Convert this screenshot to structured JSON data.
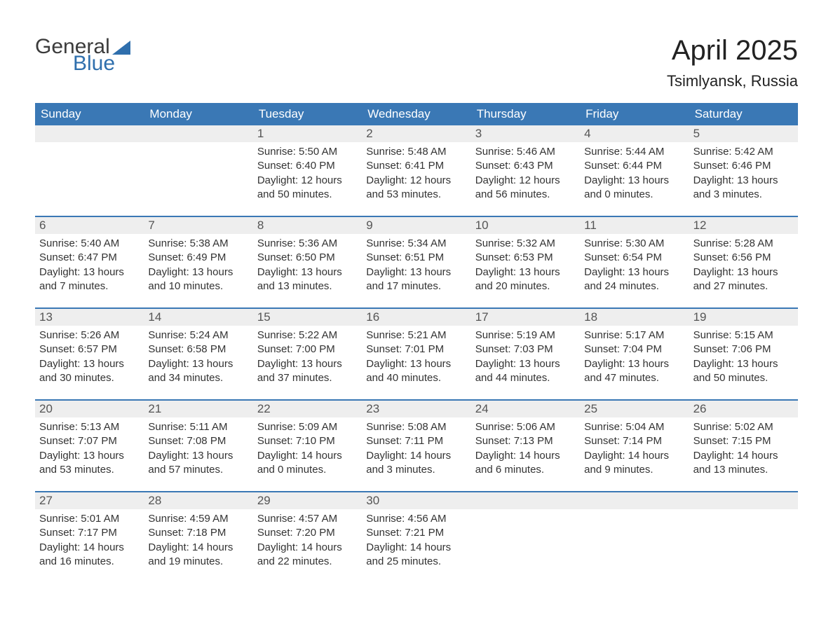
{
  "logo": {
    "part1": "General",
    "part2": "Blue",
    "color1": "#3b3b3b",
    "color2": "#2f6fad",
    "sail_color": "#2f6fad"
  },
  "header": {
    "title": "April 2025",
    "location": "Tsimlyansk, Russia"
  },
  "colors": {
    "header_bg": "#3a78b5",
    "header_text": "#ffffff",
    "daynum_bg": "#eeeeee",
    "week_divider": "#3a78b5",
    "body_text": "#333333",
    "page_bg": "#ffffff"
  },
  "fonts": {
    "body_size": 15,
    "daynum_size": 17,
    "weekday_size": 17,
    "title_size": 40,
    "location_size": 22
  },
  "weekdays": [
    "Sunday",
    "Monday",
    "Tuesday",
    "Wednesday",
    "Thursday",
    "Friday",
    "Saturday"
  ],
  "weeks": [
    [
      null,
      null,
      {
        "n": "1",
        "sunrise": "5:50 AM",
        "sunset": "6:40 PM",
        "day_h": "12",
        "day_m": "50"
      },
      {
        "n": "2",
        "sunrise": "5:48 AM",
        "sunset": "6:41 PM",
        "day_h": "12",
        "day_m": "53"
      },
      {
        "n": "3",
        "sunrise": "5:46 AM",
        "sunset": "6:43 PM",
        "day_h": "12",
        "day_m": "56"
      },
      {
        "n": "4",
        "sunrise": "5:44 AM",
        "sunset": "6:44 PM",
        "day_h": "13",
        "day_m": "0"
      },
      {
        "n": "5",
        "sunrise": "5:42 AM",
        "sunset": "6:46 PM",
        "day_h": "13",
        "day_m": "3"
      }
    ],
    [
      {
        "n": "6",
        "sunrise": "5:40 AM",
        "sunset": "6:47 PM",
        "day_h": "13",
        "day_m": "7"
      },
      {
        "n": "7",
        "sunrise": "5:38 AM",
        "sunset": "6:49 PM",
        "day_h": "13",
        "day_m": "10"
      },
      {
        "n": "8",
        "sunrise": "5:36 AM",
        "sunset": "6:50 PM",
        "day_h": "13",
        "day_m": "13"
      },
      {
        "n": "9",
        "sunrise": "5:34 AM",
        "sunset": "6:51 PM",
        "day_h": "13",
        "day_m": "17"
      },
      {
        "n": "10",
        "sunrise": "5:32 AM",
        "sunset": "6:53 PM",
        "day_h": "13",
        "day_m": "20"
      },
      {
        "n": "11",
        "sunrise": "5:30 AM",
        "sunset": "6:54 PM",
        "day_h": "13",
        "day_m": "24"
      },
      {
        "n": "12",
        "sunrise": "5:28 AM",
        "sunset": "6:56 PM",
        "day_h": "13",
        "day_m": "27"
      }
    ],
    [
      {
        "n": "13",
        "sunrise": "5:26 AM",
        "sunset": "6:57 PM",
        "day_h": "13",
        "day_m": "30"
      },
      {
        "n": "14",
        "sunrise": "5:24 AM",
        "sunset": "6:58 PM",
        "day_h": "13",
        "day_m": "34"
      },
      {
        "n": "15",
        "sunrise": "5:22 AM",
        "sunset": "7:00 PM",
        "day_h": "13",
        "day_m": "37"
      },
      {
        "n": "16",
        "sunrise": "5:21 AM",
        "sunset": "7:01 PM",
        "day_h": "13",
        "day_m": "40"
      },
      {
        "n": "17",
        "sunrise": "5:19 AM",
        "sunset": "7:03 PM",
        "day_h": "13",
        "day_m": "44"
      },
      {
        "n": "18",
        "sunrise": "5:17 AM",
        "sunset": "7:04 PM",
        "day_h": "13",
        "day_m": "47"
      },
      {
        "n": "19",
        "sunrise": "5:15 AM",
        "sunset": "7:06 PM",
        "day_h": "13",
        "day_m": "50"
      }
    ],
    [
      {
        "n": "20",
        "sunrise": "5:13 AM",
        "sunset": "7:07 PM",
        "day_h": "13",
        "day_m": "53"
      },
      {
        "n": "21",
        "sunrise": "5:11 AM",
        "sunset": "7:08 PM",
        "day_h": "13",
        "day_m": "57"
      },
      {
        "n": "22",
        "sunrise": "5:09 AM",
        "sunset": "7:10 PM",
        "day_h": "14",
        "day_m": "0"
      },
      {
        "n": "23",
        "sunrise": "5:08 AM",
        "sunset": "7:11 PM",
        "day_h": "14",
        "day_m": "3"
      },
      {
        "n": "24",
        "sunrise": "5:06 AM",
        "sunset": "7:13 PM",
        "day_h": "14",
        "day_m": "6"
      },
      {
        "n": "25",
        "sunrise": "5:04 AM",
        "sunset": "7:14 PM",
        "day_h": "14",
        "day_m": "9"
      },
      {
        "n": "26",
        "sunrise": "5:02 AM",
        "sunset": "7:15 PM",
        "day_h": "14",
        "day_m": "13"
      }
    ],
    [
      {
        "n": "27",
        "sunrise": "5:01 AM",
        "sunset": "7:17 PM",
        "day_h": "14",
        "day_m": "16"
      },
      {
        "n": "28",
        "sunrise": "4:59 AM",
        "sunset": "7:18 PM",
        "day_h": "14",
        "day_m": "19"
      },
      {
        "n": "29",
        "sunrise": "4:57 AM",
        "sunset": "7:20 PM",
        "day_h": "14",
        "day_m": "22"
      },
      {
        "n": "30",
        "sunrise": "4:56 AM",
        "sunset": "7:21 PM",
        "day_h": "14",
        "day_m": "25"
      },
      null,
      null,
      null
    ]
  ],
  "labels": {
    "sunrise_prefix": "Sunrise: ",
    "sunset_prefix": "Sunset: ",
    "daylight_prefix": "Daylight: ",
    "hours_word": " hours",
    "and_word": "and ",
    "minutes_word": " minutes."
  }
}
